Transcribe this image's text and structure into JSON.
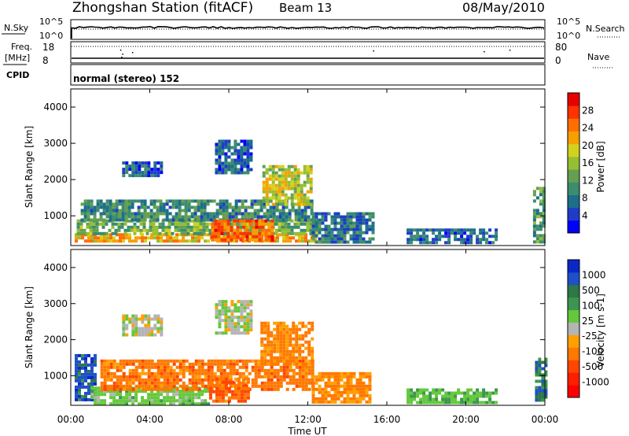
{
  "header": {
    "station": "Zhongshan Station (fitACF)",
    "beam": "Beam 13",
    "date": "08/May/2010"
  },
  "strip_panels": {
    "nsky": {
      "left_label": "N.Sky",
      "left_ticks": [
        "10^5",
        "10^0"
      ],
      "right_label": "N.Search",
      "right_ticks": [
        "10^5",
        "10^0"
      ]
    },
    "freq": {
      "left_label_top": "Freq.",
      "left_label_unit": "[MHz]",
      "left_ticks": [
        "18",
        "8"
      ],
      "right_label": "Nave",
      "right_ticks": [
        "80",
        "0"
      ]
    },
    "cpid": {
      "label": "CPID",
      "value": "normal (stereo) 152"
    }
  },
  "time_ticks": [
    "00:00",
    "04:00",
    "08:00",
    "12:00",
    "16:00",
    "20:00",
    "00:00"
  ],
  "xlabel": "Time UT",
  "chart_data": [
    {
      "type": "heatmap",
      "name": "power",
      "xlabel": "Time UT",
      "ylabel": "Slant Range [km]",
      "xlim": [
        0,
        24
      ],
      "ylim": [
        180,
        4500
      ],
      "y_ticks": [
        "1000",
        "2000",
        "3000",
        "4000"
      ],
      "colorbar": {
        "label": "Power [dB]",
        "tick_labels": [
          "4",
          "8",
          "12",
          "16",
          "20",
          "24",
          "28"
        ],
        "colors": [
          "#0000ff",
          "#1e3cc8",
          "#1d6e8c",
          "#3c8c6e",
          "#64a050",
          "#96be32",
          "#d2d21e",
          "#f5a000",
          "#ff6e00",
          "#ff3200",
          "#e60000"
        ]
      },
      "regions": [
        {
          "t0": 0.2,
          "t1": 12.3,
          "r0": 300,
          "r1": 520,
          "value": 22
        },
        {
          "t0": 0.3,
          "t1": 12.5,
          "r0": 500,
          "r1": 900,
          "value": 14
        },
        {
          "t0": 0.5,
          "t1": 12.2,
          "r0": 850,
          "r1": 1450,
          "value": 10
        },
        {
          "t0": 7.1,
          "t1": 10.2,
          "r0": 300,
          "r1": 900,
          "value": 26
        },
        {
          "t0": 9.7,
          "t1": 12.2,
          "r0": 1300,
          "r1": 2400,
          "value": 18
        },
        {
          "t0": 7.3,
          "t1": 9.2,
          "r0": 2200,
          "r1": 3100,
          "value": 7
        },
        {
          "t0": 2.6,
          "t1": 4.6,
          "r0": 2100,
          "r1": 2500,
          "value": 6
        },
        {
          "t0": 12.2,
          "t1": 15.3,
          "r0": 300,
          "r1": 1100,
          "value": 8
        },
        {
          "t0": 17.0,
          "t1": 21.5,
          "r0": 250,
          "r1": 650,
          "value": 7
        },
        {
          "t0": 23.4,
          "t1": 24.0,
          "r0": 300,
          "r1": 1800,
          "value": 12
        }
      ]
    },
    {
      "type": "heatmap",
      "name": "velocity",
      "xlabel": "Time UT",
      "ylabel": "Slant Range [km]",
      "xlim": [
        0,
        24
      ],
      "ylim": [
        180,
        4500
      ],
      "y_ticks": [
        "1000",
        "2000",
        "3000",
        "4000"
      ],
      "colorbar": {
        "label": "Velocity [m s-1]",
        "tick_labels": [
          "1000",
          "500",
          "100",
          "25",
          "-25",
          "-100",
          "-500",
          "-1000"
        ],
        "colors": [
          "#0a28c8",
          "#1e50c8",
          "#2d7846",
          "#3c9650",
          "#64c83c",
          "#b4b4b4",
          "#ffa000",
          "#ff7800",
          "#ff4600",
          "#ff1e00",
          "#ff0000"
        ]
      },
      "regions": [
        {
          "t0": 0.2,
          "t1": 1.3,
          "r0": 300,
          "r1": 1600,
          "value": 700
        },
        {
          "t0": 1.0,
          "t1": 7.0,
          "r0": 250,
          "r1": 700,
          "value": 60
        },
        {
          "t0": 1.5,
          "t1": 12.3,
          "r0": 600,
          "r1": 1450,
          "value": -200
        },
        {
          "t0": 7.0,
          "t1": 9.0,
          "r0": 300,
          "r1": 950,
          "value": -300
        },
        {
          "t0": 9.6,
          "t1": 12.2,
          "r0": 1300,
          "r1": 2500,
          "value": -150
        },
        {
          "t0": 7.3,
          "t1": 9.2,
          "r0": 2200,
          "r1": 3100,
          "value": 10
        },
        {
          "t0": 2.6,
          "t1": 4.6,
          "r0": 2100,
          "r1": 2700,
          "value": 0
        },
        {
          "t0": 12.2,
          "t1": 15.2,
          "r0": 300,
          "r1": 1100,
          "value": -120
        },
        {
          "t0": 17.0,
          "t1": 21.5,
          "r0": 250,
          "r1": 650,
          "value": 80
        },
        {
          "t0": 23.5,
          "t1": 24.0,
          "r0": 300,
          "r1": 1500,
          "value": 400
        }
      ]
    }
  ]
}
